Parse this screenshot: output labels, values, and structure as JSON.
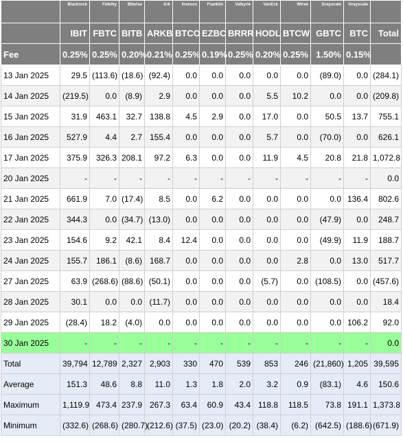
{
  "providers": [
    "",
    "Blackrock",
    "Fidelity",
    "Bitwise",
    "Ark",
    "Invesco",
    "Franklin",
    "Valkyrie",
    "VanEck",
    "Wtree",
    "Grayscale",
    "Grayscale",
    ""
  ],
  "tickers": [
    "",
    "IBIT",
    "FBTC",
    "BITB",
    "ARKB",
    "BTCO",
    "EZBC",
    "BRRR",
    "HODL",
    "BTCW",
    "GBTC",
    "BTC",
    "Total"
  ],
  "fees": [
    "Fee",
    "0.25%",
    "0.25%",
    "0.20%",
    "0.21%",
    "0.25%",
    "0.19%",
    "0.25%",
    "0.20%",
    "0.25%",
    "1.50%",
    "0.15%",
    ""
  ],
  "rows": [
    {
      "date": "13 Jan 2025",
      "values": [
        "29.5",
        "(113.6)",
        "(18.6)",
        "(92.4)",
        "0.0",
        "0.0",
        "0.0",
        "0.0",
        "0.0",
        "(89.0)",
        "0.0",
        "(284.1)"
      ]
    },
    {
      "date": "14 Jan 2025",
      "values": [
        "(219.5)",
        "0.0",
        "(8.9)",
        "2.9",
        "0.0",
        "0.0",
        "0.0",
        "5.5",
        "10.2",
        "0.0",
        "0.0",
        "(209.8)"
      ]
    },
    {
      "date": "15 Jan 2025",
      "values": [
        "31.9",
        "463.1",
        "32.7",
        "138.8",
        "4.5",
        "2.9",
        "0.0",
        "17.0",
        "0.0",
        "50.5",
        "13.7",
        "755.1"
      ]
    },
    {
      "date": "16 Jan 2025",
      "values": [
        "527.9",
        "4.4",
        "2.7",
        "155.4",
        "0.0",
        "0.0",
        "0.0",
        "5.7",
        "0.0",
        "(70.0)",
        "0.0",
        "626.1"
      ]
    },
    {
      "date": "17 Jan 2025",
      "values": [
        "375.9",
        "326.3",
        "208.1",
        "97.2",
        "6.3",
        "0.0",
        "0.0",
        "11.9",
        "4.5",
        "20.8",
        "21.8",
        "1,072.8"
      ]
    },
    {
      "date": "20 Jan 2025",
      "values": [
        "-",
        "-",
        "-",
        "-",
        "-",
        "-",
        "-",
        "-",
        "-",
        "-",
        "-",
        "0.0"
      ]
    },
    {
      "date": "21 Jan 2025",
      "values": [
        "661.9",
        "7.0",
        "(17.4)",
        "8.5",
        "0.0",
        "6.2",
        "0.0",
        "0.0",
        "0.0",
        "0.0",
        "136.4",
        "802.6"
      ]
    },
    {
      "date": "22 Jan 2025",
      "values": [
        "344.3",
        "0.0",
        "(34.7)",
        "(13.0)",
        "0.0",
        "0.0",
        "0.0",
        "0.0",
        "0.0",
        "(47.9)",
        "0.0",
        "248.7"
      ]
    },
    {
      "date": "23 Jan 2025",
      "values": [
        "154.6",
        "9.2",
        "42.1",
        "8.4",
        "12.4",
        "0.0",
        "0.0",
        "0.0",
        "0.0",
        "(49.9)",
        "11.9",
        "188.7"
      ]
    },
    {
      "date": "24 Jan 2025",
      "values": [
        "155.7",
        "186.1",
        "(8.6)",
        "168.7",
        "0.0",
        "0.0",
        "0.0",
        "0.0",
        "2.8",
        "0.0",
        "13.0",
        "517.7"
      ]
    },
    {
      "date": "27 Jan 2025",
      "values": [
        "63.9",
        "(268.6)",
        "(88.6)",
        "(50.1)",
        "0.0",
        "0.0",
        "0.0",
        "(5.7)",
        "0.0",
        "(108.5)",
        "0.0",
        "(457.6)"
      ]
    },
    {
      "date": "28 Jan 2025",
      "values": [
        "30.1",
        "0.0",
        "0.0",
        "(11.7)",
        "0.0",
        "0.0",
        "0.0",
        "0.0",
        "0.0",
        "0.0",
        "0.0",
        "18.4"
      ]
    },
    {
      "date": "29 Jan 2025",
      "values": [
        "(28.4)",
        "18.2",
        "(4.0)",
        "0.0",
        "0.0",
        "0.0",
        "0.0",
        "0.0",
        "0.0",
        "0.0",
        "106.2",
        "92.0"
      ]
    },
    {
      "date": "30 Jan 2025",
      "values": [
        "-",
        "-",
        "-",
        "-",
        "-",
        "-",
        "-",
        "-",
        "-",
        "-",
        "-",
        "0.0"
      ],
      "highlight": true
    }
  ],
  "summary": [
    {
      "label": "Total",
      "values": [
        "39,794",
        "12,789",
        "2,327",
        "2,903",
        "330",
        "470",
        "539",
        "853",
        "246",
        "(21,860)",
        "1,205",
        "39,595"
      ]
    },
    {
      "label": "Average",
      "values": [
        "151.3",
        "48.6",
        "8.8",
        "11.0",
        "1.3",
        "1.8",
        "2.0",
        "3.2",
        "0.9",
        "(83.1)",
        "4.6",
        "150.6"
      ]
    },
    {
      "label": "Maximum",
      "values": [
        "1,119.9",
        "473.4",
        "237.9",
        "267.3",
        "63.4",
        "60.9",
        "43.4",
        "118.8",
        "118.5",
        "73.8",
        "191.1",
        "1,373.8"
      ]
    },
    {
      "label": "Minimum",
      "values": [
        "(332.6)",
        "(268.6)",
        "(280.7)",
        "(212.6)",
        "(37.5)",
        "(23.0)",
        "(20.2)",
        "(38.4)",
        "(6.2)",
        "(642.5)",
        "(188.6)",
        "(671.9)"
      ]
    }
  ],
  "colors": {
    "header_bg": "#7f7f7f",
    "negative": "#ff0000",
    "highlight_row": "#99ff99",
    "summary_bg": "#e5ebf7",
    "stripe": "#f2f2f2"
  }
}
